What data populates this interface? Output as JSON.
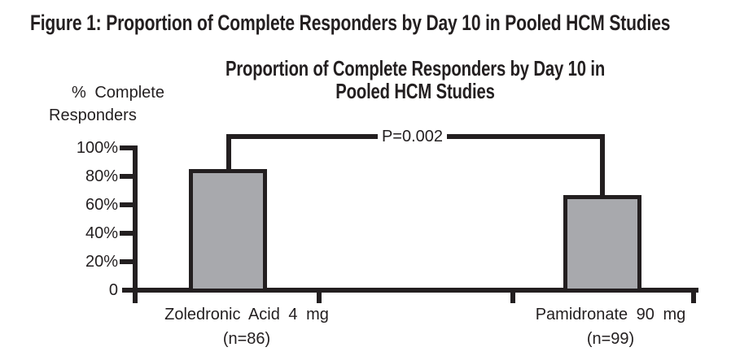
{
  "figure_title": "Figure 1: Proportion of Complete Responders by Day 10 in Pooled HCM Studies",
  "chart": {
    "title_line1": "Proportion of Complete Responders by Day 10 in",
    "title_line2": "Pooled HCM Studies",
    "y_axis_label_line1": "% Complete",
    "y_axis_label_line2": "Responders",
    "y_ticks": [
      "100%",
      "80%",
      "60%",
      "40%",
      "20%",
      "0"
    ],
    "p_value_label": "P=0.002",
    "categories": [
      {
        "label": "Zoledronic Acid 4 mg",
        "n_label": "(n=86)"
      },
      {
        "label": "Pamidronate 90 mg",
        "n_label": "(n=99)"
      }
    ]
  },
  "colors": {
    "ink": "#231f20",
    "bar_fill": "#a8a9ad",
    "background": "#ffffff"
  },
  "chart_data": {
    "type": "bar",
    "title": "Proportion of Complete Responders by Day 10 in Pooled HCM Studies",
    "categories": [
      "Zoledronic Acid 4 mg (n=86)",
      "Pamidronate 90 mg (n=99)"
    ],
    "values": [
      85,
      67
    ],
    "xlabel": "",
    "ylabel": "% Complete Responders",
    "ylim": [
      0,
      100
    ],
    "y_tick_interval": 20,
    "y_tick_labels": [
      "0",
      "20%",
      "40%",
      "60%",
      "80%",
      "100%"
    ],
    "grid": false,
    "legend": "none",
    "bar_fill_color": "#a8a9ad",
    "annotations": [
      {
        "text": "P=0.002",
        "type": "significance-bracket",
        "connects": [
          "Zoledronic Acid 4 mg (n=86)",
          "Pamidronate 90 mg (n=99)"
        ]
      }
    ]
  }
}
